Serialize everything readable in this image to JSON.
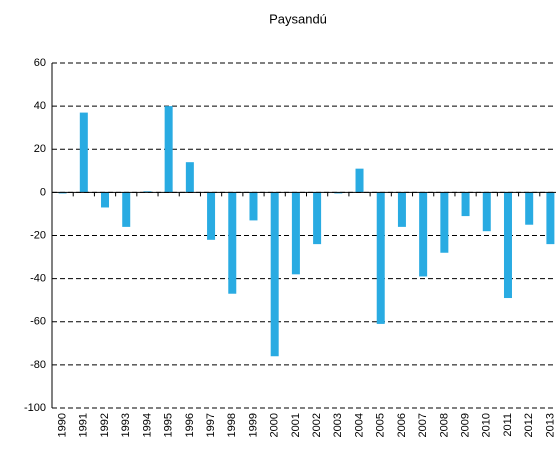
{
  "chart_data": {
    "type": "bar",
    "title": "Paysandú",
    "categories": [
      "1990",
      "1991",
      "1992",
      "1993",
      "1994",
      "1995",
      "1996",
      "1997",
      "1998",
      "1999",
      "2000",
      "2001",
      "2002",
      "2003",
      "2004",
      "2005",
      "2006",
      "2007",
      "2008",
      "2009",
      "2010",
      "2011",
      "2012",
      "2013"
    ],
    "values": [
      -0.5,
      37,
      -7,
      -16,
      0.5,
      40,
      14,
      -22,
      -47,
      -13,
      -76,
      -38,
      -24,
      -0.5,
      11,
      -61,
      -16,
      -39,
      -28,
      -11,
      -18,
      -49,
      -15,
      -24
    ],
    "color": "#29abe2",
    "ylim": [
      -100,
      60
    ],
    "yticks": [
      -100,
      -80,
      -60,
      -40,
      -20,
      0,
      20,
      40,
      60
    ],
    "grid": true
  }
}
